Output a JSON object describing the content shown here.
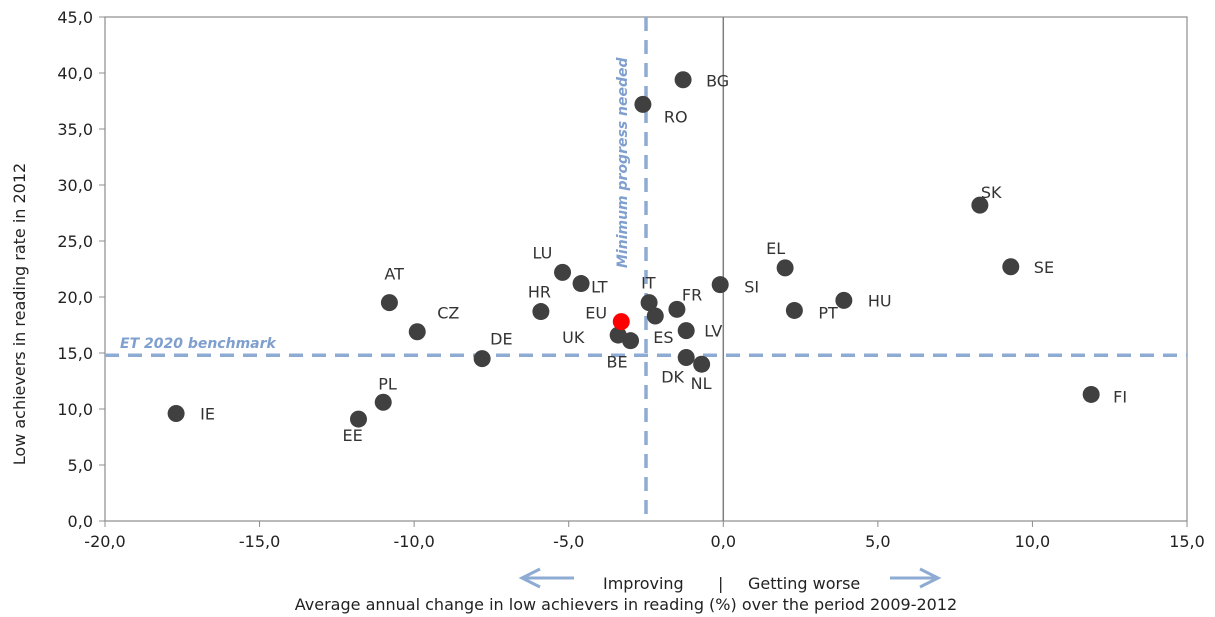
{
  "chart_data": {
    "type": "scatter",
    "xlabel": "Average annual change in low achievers in reading (%) over the period 2009-2012",
    "ylabel": "Low achievers in reading rate in 2012",
    "xlim": [
      -20,
      15
    ],
    "ylim": [
      0,
      45
    ],
    "x_ticks": [
      "-20,0",
      "-15,0",
      "-10,0",
      "-5,0",
      "0,0",
      "5,0",
      "10,0",
      "15,0"
    ],
    "y_ticks": [
      "0,0",
      "5,0",
      "10,0",
      "15,0",
      "20,0",
      "25,0",
      "30,0",
      "35,0",
      "40,0",
      "45,0"
    ],
    "grid": false,
    "colors": {
      "point": "#404040",
      "highlight": "#ff0000",
      "reference": "#8eabd3",
      "zero_line": "#7f7f7f"
    },
    "points": [
      {
        "label": "IE",
        "x": -17.7,
        "y": 9.6
      },
      {
        "label": "EE",
        "x": -11.8,
        "y": 9.1
      },
      {
        "label": "PL",
        "x": -11.0,
        "y": 10.6
      },
      {
        "label": "AT",
        "x": -10.8,
        "y": 19.5
      },
      {
        "label": "CZ",
        "x": -9.9,
        "y": 16.9
      },
      {
        "label": "DE",
        "x": -7.8,
        "y": 14.5
      },
      {
        "label": "HR",
        "x": -5.9,
        "y": 18.7
      },
      {
        "label": "LU",
        "x": -5.2,
        "y": 22.2
      },
      {
        "label": "LT",
        "x": -4.6,
        "y": 21.2
      },
      {
        "label": "UK",
        "x": -3.4,
        "y": 16.6
      },
      {
        "label": "BE",
        "x": -3.0,
        "y": 16.1
      },
      {
        "label": "IT",
        "x": -2.4,
        "y": 19.5
      },
      {
        "label": "ES",
        "x": -2.2,
        "y": 18.3
      },
      {
        "label": "RO",
        "x": -2.6,
        "y": 37.2
      },
      {
        "label": "FR",
        "x": -1.5,
        "y": 18.9
      },
      {
        "label": "BG",
        "x": -1.3,
        "y": 39.4
      },
      {
        "label": "LV",
        "x": -1.2,
        "y": 17.0
      },
      {
        "label": "DK",
        "x": -1.2,
        "y": 14.6
      },
      {
        "label": "NL",
        "x": -0.7,
        "y": 14.0
      },
      {
        "label": "SI",
        "x": -0.1,
        "y": 21.1
      },
      {
        "label": "EL",
        "x": 2.0,
        "y": 22.6
      },
      {
        "label": "PT",
        "x": 2.3,
        "y": 18.8
      },
      {
        "label": "HU",
        "x": 3.9,
        "y": 19.7
      },
      {
        "label": "SK",
        "x": 8.3,
        "y": 28.2
      },
      {
        "label": "SE",
        "x": 9.3,
        "y": 22.7
      },
      {
        "label": "FI",
        "x": 11.9,
        "y": 11.3
      },
      {
        "label": "EU",
        "x": -3.3,
        "y": 17.8,
        "highlight": true
      }
    ],
    "reference_lines": {
      "horizontal": {
        "y": 14.8,
        "label": "ET 2020 benchmark"
      },
      "vertical": {
        "x": -2.5,
        "label": "Minimum progress needed"
      }
    },
    "direction_labels": {
      "left": "Improving",
      "separator": "|",
      "right": "Getting worse"
    }
  }
}
